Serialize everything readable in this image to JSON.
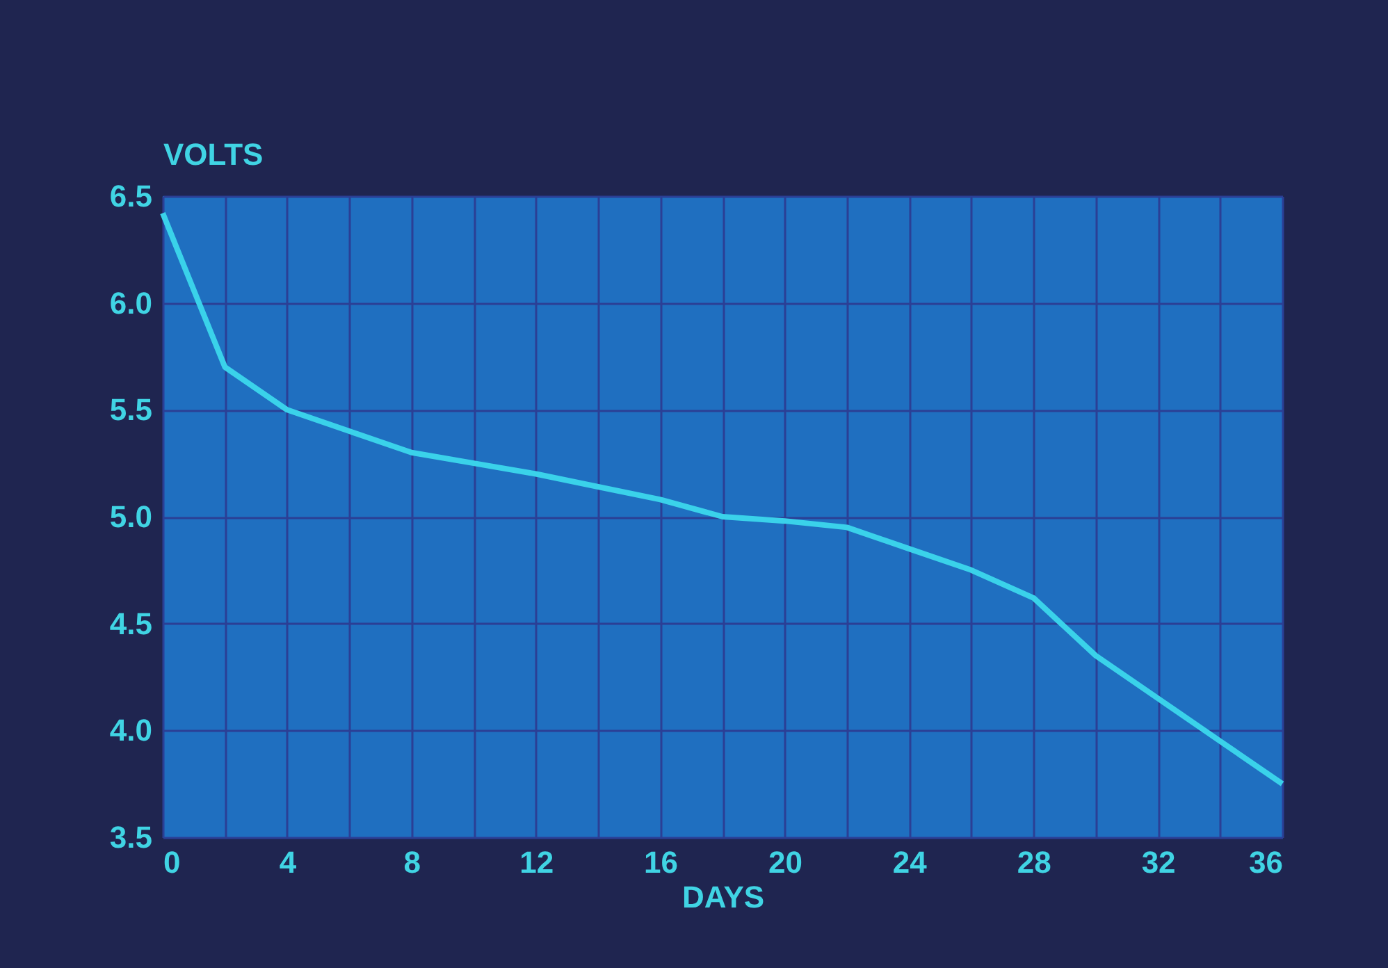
{
  "chart_data": {
    "type": "line",
    "xlabel": "DAYS",
    "ylabel": "VOLTS",
    "x": [
      0,
      2,
      4,
      6,
      8,
      10,
      12,
      14,
      16,
      18,
      20,
      22,
      24,
      26,
      28,
      30,
      32,
      34,
      36
    ],
    "series": [
      {
        "color": "#3ad2ea",
        "values": [
          6.42,
          5.7,
          5.5,
          5.4,
          5.3,
          5.25,
          5.2,
          5.14,
          5.08,
          5.0,
          4.98,
          4.95,
          4.85,
          4.75,
          4.62,
          4.35,
          4.15,
          3.95,
          3.75
        ]
      }
    ],
    "xlim": [
      0,
      36
    ],
    "xticks": [
      0,
      {
        "value": 2,
        "label": null
      },
      4,
      {
        "value": 6,
        "label": null
      },
      8,
      {
        "value": 10,
        "label": null
      },
      12,
      {
        "value": 14,
        "label": null
      },
      16,
      {
        "value": 18,
        "label": null
      },
      20,
      {
        "value": 22,
        "label": null
      },
      24,
      {
        "value": 26,
        "label": null
      },
      28,
      {
        "value": 30,
        "label": null
      },
      32,
      {
        "value": 34,
        "label": null
      },
      36
    ],
    "ylim": [
      3.5,
      6.5
    ],
    "yticks": [
      3.5,
      {
        "value": 4,
        "label": "4.0"
      },
      4.5,
      {
        "value": 5,
        "label": "5.0"
      },
      5.5,
      {
        "value": 6,
        "label": "6.0"
      },
      6.5
    ],
    "grid": true,
    "marker": "none",
    "line_style": "solid"
  }
}
